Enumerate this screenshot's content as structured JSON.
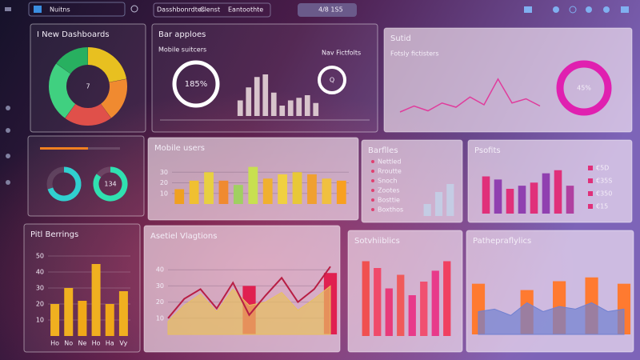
{
  "toolbar": {
    "search": "Nuitns",
    "tabs": [
      "Dasshbonrdtes",
      "Clenst",
      "Eantoothte"
    ],
    "field": "4/8 1S5"
  },
  "panels": [
    {
      "title": "I New Dashboards",
      "chart": {
        "type": "donut",
        "center_label": "7",
        "values": [
          22,
          18,
          20,
          25,
          15
        ],
        "colors": [
          "#e8c020",
          "#f08a30",
          "#e0504a",
          "#40d080",
          "#28b060"
        ]
      }
    },
    {
      "title": "Bar apploes",
      "subtitle": "Mobile suitcers",
      "note": "Nav Fictfolts",
      "chart": {
        "type": "bar-rings",
        "rings": [
          "185%",
          "Q"
        ],
        "values": [
          30,
          55,
          75,
          80,
          45,
          20,
          30,
          35,
          40,
          25
        ],
        "color": "#d8c4cc",
        "ylim": [
          0,
          100
        ]
      }
    },
    {
      "title": "Sutid",
      "subtitle": "Fotsly fictisters",
      "chart": {
        "type": "line",
        "ring": "45%",
        "values": [
          20,
          30,
          22,
          35,
          28,
          45,
          32,
          75,
          35,
          42,
          30
        ],
        "color": "#e03c9c",
        "ring_color": "#e020b0",
        "ylim": [
          0,
          100
        ]
      }
    },
    {
      "chart": {
        "type": "gauges",
        "progress": 60,
        "progress_color": "#f08020",
        "gauges": [
          {
            "value": 70,
            "color": "#30d0d0"
          },
          {
            "value": 85,
            "color": "#30e0b0",
            "label": "134"
          }
        ]
      }
    },
    {
      "title": "Mobile users",
      "chart": {
        "type": "bar",
        "values": [
          14,
          22,
          30,
          22,
          18,
          35,
          24,
          28,
          30,
          28,
          24,
          22
        ],
        "colors": [
          "#f0a020",
          "#f0c030",
          "#e8d040",
          "#f08a30",
          "#a0d060",
          "#c8e050",
          "#f0b030",
          "#f0d040",
          "#e8c838",
          "#f0a030",
          "#f0c040",
          "#f8a020"
        ],
        "ylim": [
          0,
          40
        ],
        "yticks": [
          10,
          20,
          30
        ]
      }
    },
    {
      "title": "Barflles",
      "items": [
        "Nettled",
        "Rroutte",
        "Snoch",
        "Zootes",
        "Bosttie",
        "Boxthos"
      ],
      "chart": {
        "type": "bar",
        "values": [
          15,
          30,
          40
        ],
        "color": "#c4cce4",
        "ylim": [
          0,
          50
        ]
      }
    },
    {
      "title": "Psofits",
      "side_labels": [
        "€5D",
        "€35S",
        "€350",
        "€15"
      ],
      "chart": {
        "type": "bar",
        "values": [
          60,
          55,
          40,
          45,
          50,
          65,
          70,
          45
        ],
        "colors": [
          "#e0307a",
          "#9040b0",
          "#e0307a",
          "#9040b0",
          "#e0307a",
          "#9040b0",
          "#e0307a",
          "#b040a0"
        ],
        "ylim": [
          0,
          80
        ]
      }
    },
    {
      "title": "Pitl Berrings",
      "chart": {
        "type": "bar",
        "values": [
          20,
          30,
          22,
          45,
          20,
          28
        ],
        "colors": [
          "#f0b020",
          "#f0b020",
          "#f0a818",
          "#f0b020",
          "#f0a818",
          "#f0b020"
        ],
        "ylim": [
          0,
          55
        ],
        "yticks": [
          10,
          20,
          30,
          40,
          50
        ],
        "categories": [
          "Ho",
          "No",
          "Ne",
          "Ho",
          "Ha",
          "Vy"
        ]
      }
    },
    {
      "title": "Asetiel Vlagtions",
      "chart": {
        "type": "area",
        "ylim": [
          0,
          50
        ],
        "yticks": [
          10,
          20,
          30,
          40
        ],
        "series": [
          {
            "kind": "area",
            "color": "#e8c060",
            "values": [
              8,
              18,
              25,
              14,
              28,
              18,
              20,
              26,
              15,
              22,
              30
            ]
          },
          {
            "kind": "line",
            "color": "#b81e44",
            "values": [
              10,
              22,
              28,
              16,
              32,
              12,
              24,
              35,
              20,
              28,
              42
            ]
          }
        ],
        "bars": {
          "color": "#e02050",
          "values": [
            null,
            null,
            null,
            null,
            null,
            30,
            null,
            null,
            null,
            null,
            38
          ]
        }
      }
    },
    {
      "title": "Sotvhiiblics",
      "chart": {
        "type": "bar",
        "values": [
          55,
          50,
          35,
          45,
          30,
          40,
          48,
          55
        ],
        "colors": [
          "#f05050",
          "#f04a6a",
          "#e83a7a",
          "#f05a5a",
          "#e83a8a",
          "#f05070",
          "#e83a8a",
          "#f04060"
        ],
        "ylim": [
          0,
          60
        ]
      }
    },
    {
      "title": "Pathepraflylics",
      "chart": {
        "type": "area",
        "ylim": [
          0,
          60
        ],
        "series": [
          {
            "kind": "area",
            "color": "#7080d0",
            "values": [
              18,
              20,
              15,
              25,
              18,
              22,
              20,
              25,
              18,
              20
            ]
          }
        ],
        "bars": {
          "color": "#ff7a30",
          "values": [
            40,
            null,
            null,
            35,
            null,
            42,
            null,
            45,
            null,
            40
          ]
        }
      }
    }
  ]
}
